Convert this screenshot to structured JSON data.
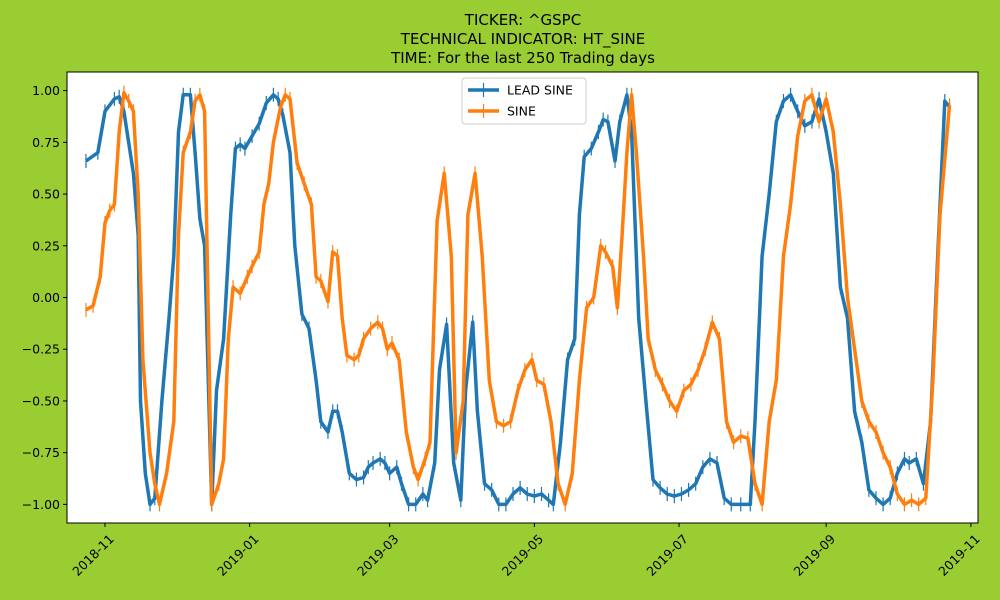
{
  "chart_data": {
    "type": "line",
    "title_lines": [
      "TICKER:  ^GSPC",
      "TECHNICAL INDICATOR:  HT_SINE",
      "TIME: For the last 250 Trading days"
    ],
    "xlabel": "",
    "ylabel": "",
    "x_ticks": [
      "2018-11",
      "2019-01",
      "2019-03",
      "2019-05",
      "2019-07",
      "2019-09",
      "2019-11"
    ],
    "x_range": [
      "2018-10-16",
      "2019-11-04"
    ],
    "y_ticks": [
      "1.00",
      "0.75",
      "0.50",
      "0.25",
      "0.00",
      "−0.25",
      "−0.50",
      "−0.75",
      "−1.00"
    ],
    "ylim": [
      -1.09,
      1.09
    ],
    "grid": false,
    "legend_position": "upper center",
    "series": [
      {
        "name": "LEAD SINE",
        "color": "#1f77b4",
        "points": [
          [
            "2018-10-24",
            0.66
          ],
          [
            "2018-10-29",
            0.7
          ],
          [
            "2018-11-01",
            0.9
          ],
          [
            "2018-11-05",
            0.96
          ],
          [
            "2018-11-07",
            0.97
          ],
          [
            "2018-11-09",
            0.9
          ],
          [
            "2018-11-13",
            0.6
          ],
          [
            "2018-11-15",
            0.3
          ],
          [
            "2018-11-16",
            -0.5
          ],
          [
            "2018-11-18",
            -0.85
          ],
          [
            "2018-11-20",
            -1.0
          ],
          [
            "2018-11-22",
            -0.97
          ],
          [
            "2018-11-25",
            -0.5
          ],
          [
            "2018-11-28",
            -0.1
          ],
          [
            "2018-11-30",
            0.2
          ],
          [
            "2018-12-02",
            0.8
          ],
          [
            "2018-12-04",
            0.98
          ],
          [
            "2018-12-07",
            0.98
          ],
          [
            "2018-12-09",
            0.7
          ],
          [
            "2018-12-11",
            0.38
          ],
          [
            "2018-12-13",
            0.25
          ],
          [
            "2018-12-16",
            -1.0
          ],
          [
            "2018-12-18",
            -0.45
          ],
          [
            "2018-12-21",
            -0.2
          ],
          [
            "2018-12-24",
            0.4
          ],
          [
            "2018-12-26",
            0.72
          ],
          [
            "2018-12-28",
            0.74
          ],
          [
            "2018-12-30",
            0.72
          ],
          [
            "2019-01-02",
            0.78
          ],
          [
            "2019-01-05",
            0.84
          ],
          [
            "2019-01-08",
            0.94
          ],
          [
            "2019-01-11",
            0.98
          ],
          [
            "2019-01-13",
            0.96
          ],
          [
            "2019-01-15",
            0.88
          ],
          [
            "2019-01-18",
            0.7
          ],
          [
            "2019-01-20",
            0.25
          ],
          [
            "2019-01-23",
            -0.08
          ],
          [
            "2019-01-26",
            -0.15
          ],
          [
            "2019-01-29",
            -0.4
          ],
          [
            "2019-01-31",
            -0.6
          ],
          [
            "2019-02-03",
            -0.65
          ],
          [
            "2019-02-05",
            -0.55
          ],
          [
            "2019-02-07",
            -0.55
          ],
          [
            "2019-02-09",
            -0.65
          ],
          [
            "2019-02-12",
            -0.85
          ],
          [
            "2019-02-15",
            -0.88
          ],
          [
            "2019-02-18",
            -0.87
          ],
          [
            "2019-02-20",
            -0.82
          ],
          [
            "2019-02-22",
            -0.8
          ],
          [
            "2019-02-25",
            -0.78
          ],
          [
            "2019-02-27",
            -0.8
          ],
          [
            "2019-03-01",
            -0.85
          ],
          [
            "2019-03-04",
            -0.82
          ],
          [
            "2019-03-06",
            -0.9
          ],
          [
            "2019-03-09",
            -1.0
          ],
          [
            "2019-03-12",
            -1.0
          ],
          [
            "2019-03-15",
            -0.95
          ],
          [
            "2019-03-17",
            -0.98
          ],
          [
            "2019-03-20",
            -0.8
          ],
          [
            "2019-03-22",
            -0.35
          ],
          [
            "2019-03-25",
            -0.13
          ],
          [
            "2019-03-28",
            -0.8
          ],
          [
            "2019-03-31",
            -0.98
          ],
          [
            "2019-04-02",
            -0.45
          ],
          [
            "2019-04-05",
            -0.12
          ],
          [
            "2019-04-07",
            -0.55
          ],
          [
            "2019-04-10",
            -0.9
          ],
          [
            "2019-04-13",
            -0.93
          ],
          [
            "2019-04-16",
            -1.0
          ],
          [
            "2019-04-19",
            -1.0
          ],
          [
            "2019-04-22",
            -0.95
          ],
          [
            "2019-04-25",
            -0.92
          ],
          [
            "2019-04-28",
            -0.95
          ],
          [
            "2019-05-01",
            -0.96
          ],
          [
            "2019-05-04",
            -0.95
          ],
          [
            "2019-05-07",
            -0.98
          ],
          [
            "2019-05-09",
            -1.0
          ],
          [
            "2019-05-12",
            -0.7
          ],
          [
            "2019-05-15",
            -0.3
          ],
          [
            "2019-05-18",
            -0.2
          ],
          [
            "2019-05-20",
            0.4
          ],
          [
            "2019-05-22",
            0.68
          ],
          [
            "2019-05-25",
            0.72
          ],
          [
            "2019-05-28",
            0.8
          ],
          [
            "2019-05-30",
            0.86
          ],
          [
            "2019-06-01",
            0.85
          ],
          [
            "2019-06-04",
            0.66
          ],
          [
            "2019-06-06",
            0.85
          ],
          [
            "2019-06-09",
            0.98
          ],
          [
            "2019-06-11",
            0.8
          ],
          [
            "2019-06-14",
            -0.1
          ],
          [
            "2019-06-17",
            -0.5
          ],
          [
            "2019-06-20",
            -0.88
          ],
          [
            "2019-06-23",
            -0.92
          ],
          [
            "2019-06-26",
            -0.95
          ],
          [
            "2019-06-29",
            -0.96
          ],
          [
            "2019-07-02",
            -0.95
          ],
          [
            "2019-07-05",
            -0.93
          ],
          [
            "2019-07-08",
            -0.9
          ],
          [
            "2019-07-11",
            -0.82
          ],
          [
            "2019-07-14",
            -0.78
          ],
          [
            "2019-07-17",
            -0.8
          ],
          [
            "2019-07-20",
            -0.97
          ],
          [
            "2019-07-23",
            -1.0
          ],
          [
            "2019-07-27",
            -1.0
          ],
          [
            "2019-07-31",
            -1.0
          ],
          [
            "2019-08-02",
            -0.6
          ],
          [
            "2019-08-05",
            0.2
          ],
          [
            "2019-08-08",
            0.5
          ],
          [
            "2019-08-11",
            0.85
          ],
          [
            "2019-08-14",
            0.95
          ],
          [
            "2019-08-17",
            0.98
          ],
          [
            "2019-08-20",
            0.9
          ],
          [
            "2019-08-23",
            0.83
          ],
          [
            "2019-08-26",
            0.85
          ],
          [
            "2019-08-29",
            0.96
          ],
          [
            "2019-09-01",
            0.8
          ],
          [
            "2019-09-04",
            0.6
          ],
          [
            "2019-09-07",
            0.05
          ],
          [
            "2019-09-10",
            -0.1
          ],
          [
            "2019-09-13",
            -0.55
          ],
          [
            "2019-09-16",
            -0.7
          ],
          [
            "2019-09-19",
            -0.93
          ],
          [
            "2019-09-22",
            -0.97
          ],
          [
            "2019-09-25",
            -1.0
          ],
          [
            "2019-09-28",
            -0.97
          ],
          [
            "2019-10-01",
            -0.85
          ],
          [
            "2019-10-04",
            -0.78
          ],
          [
            "2019-10-06",
            -0.8
          ],
          [
            "2019-10-09",
            -0.78
          ],
          [
            "2019-10-12",
            -0.9
          ],
          [
            "2019-10-15",
            -0.6
          ],
          [
            "2019-10-18",
            0.2
          ],
          [
            "2019-10-21",
            0.95
          ],
          [
            "2019-10-23",
            0.92
          ]
        ]
      },
      {
        "name": "SINE",
        "color": "#ff7f0e",
        "points": [
          [
            "2018-10-24",
            -0.06
          ],
          [
            "2018-10-27",
            -0.04
          ],
          [
            "2018-10-30",
            0.1
          ],
          [
            "2018-11-01",
            0.36
          ],
          [
            "2018-11-03",
            0.42
          ],
          [
            "2018-11-05",
            0.45
          ],
          [
            "2018-11-07",
            0.8
          ],
          [
            "2018-11-09",
            0.99
          ],
          [
            "2018-11-11",
            0.95
          ],
          [
            "2018-11-13",
            0.9
          ],
          [
            "2018-11-15",
            0.5
          ],
          [
            "2018-11-17",
            -0.3
          ],
          [
            "2018-11-20",
            -0.75
          ],
          [
            "2018-11-22",
            -0.9
          ],
          [
            "2018-11-24",
            -1.0
          ],
          [
            "2018-11-27",
            -0.85
          ],
          [
            "2018-11-30",
            -0.6
          ],
          [
            "2018-12-02",
            0.3
          ],
          [
            "2018-12-04",
            0.7
          ],
          [
            "2018-12-07",
            0.8
          ],
          [
            "2018-12-09",
            0.95
          ],
          [
            "2018-12-11",
            0.98
          ],
          [
            "2018-12-13",
            0.9
          ],
          [
            "2018-12-16",
            -1.0
          ],
          [
            "2018-12-19",
            -0.9
          ],
          [
            "2018-12-21",
            -0.78
          ],
          [
            "2018-12-23",
            -0.2
          ],
          [
            "2018-12-25",
            0.05
          ],
          [
            "2018-12-28",
            0.02
          ],
          [
            "2018-12-31",
            0.1
          ],
          [
            "2019-01-02",
            0.15
          ],
          [
            "2019-01-05",
            0.22
          ],
          [
            "2019-01-07",
            0.45
          ],
          [
            "2019-01-09",
            0.55
          ],
          [
            "2019-01-11",
            0.75
          ],
          [
            "2019-01-14",
            0.92
          ],
          [
            "2019-01-16",
            0.98
          ],
          [
            "2019-01-18",
            0.96
          ],
          [
            "2019-01-21",
            0.65
          ],
          [
            "2019-01-24",
            0.55
          ],
          [
            "2019-01-27",
            0.45
          ],
          [
            "2019-01-29",
            0.1
          ],
          [
            "2019-01-31",
            0.08
          ],
          [
            "2019-02-03",
            -0.02
          ],
          [
            "2019-02-05",
            0.22
          ],
          [
            "2019-02-07",
            0.2
          ],
          [
            "2019-02-09",
            -0.1
          ],
          [
            "2019-02-11",
            -0.28
          ],
          [
            "2019-02-14",
            -0.3
          ],
          [
            "2019-02-16",
            -0.28
          ],
          [
            "2019-02-18",
            -0.2
          ],
          [
            "2019-02-21",
            -0.15
          ],
          [
            "2019-02-24",
            -0.12
          ],
          [
            "2019-02-26",
            -0.15
          ],
          [
            "2019-02-28",
            -0.25
          ],
          [
            "2019-03-02",
            -0.22
          ],
          [
            "2019-03-05",
            -0.3
          ],
          [
            "2019-03-08",
            -0.65
          ],
          [
            "2019-03-11",
            -0.82
          ],
          [
            "2019-03-13",
            -0.88
          ],
          [
            "2019-03-16",
            -0.78
          ],
          [
            "2019-03-18",
            -0.7
          ],
          [
            "2019-03-21",
            0.37
          ],
          [
            "2019-03-24",
            0.6
          ],
          [
            "2019-03-27",
            0.2
          ],
          [
            "2019-03-29",
            -0.75
          ],
          [
            "2019-04-01",
            -0.5
          ],
          [
            "2019-04-03",
            0.4
          ],
          [
            "2019-04-06",
            0.6
          ],
          [
            "2019-04-09",
            0.2
          ],
          [
            "2019-04-12",
            -0.4
          ],
          [
            "2019-04-15",
            -0.6
          ],
          [
            "2019-04-18",
            -0.62
          ],
          [
            "2019-04-21",
            -0.6
          ],
          [
            "2019-04-24",
            -0.45
          ],
          [
            "2019-04-27",
            -0.35
          ],
          [
            "2019-04-30",
            -0.3
          ],
          [
            "2019-05-02",
            -0.4
          ],
          [
            "2019-05-05",
            -0.42
          ],
          [
            "2019-05-08",
            -0.6
          ],
          [
            "2019-05-11",
            -0.9
          ],
          [
            "2019-05-14",
            -1.0
          ],
          [
            "2019-05-17",
            -0.85
          ],
          [
            "2019-05-20",
            -0.4
          ],
          [
            "2019-05-23",
            -0.05
          ],
          [
            "2019-05-26",
            0.0
          ],
          [
            "2019-05-29",
            0.25
          ],
          [
            "2019-05-31",
            0.22
          ],
          [
            "2019-06-03",
            0.15
          ],
          [
            "2019-06-05",
            -0.05
          ],
          [
            "2019-06-07",
            0.3
          ],
          [
            "2019-06-09",
            0.7
          ],
          [
            "2019-06-11",
            0.98
          ],
          [
            "2019-06-13",
            0.7
          ],
          [
            "2019-06-16",
            0.2
          ],
          [
            "2019-06-18",
            -0.2
          ],
          [
            "2019-06-21",
            -0.35
          ],
          [
            "2019-06-24",
            -0.42
          ],
          [
            "2019-06-27",
            -0.5
          ],
          [
            "2019-06-30",
            -0.55
          ],
          [
            "2019-07-03",
            -0.45
          ],
          [
            "2019-07-06",
            -0.42
          ],
          [
            "2019-07-09",
            -0.35
          ],
          [
            "2019-07-12",
            -0.25
          ],
          [
            "2019-07-15",
            -0.12
          ],
          [
            "2019-07-18",
            -0.2
          ],
          [
            "2019-07-21",
            -0.6
          ],
          [
            "2019-07-24",
            -0.7
          ],
          [
            "2019-07-27",
            -0.67
          ],
          [
            "2019-07-30",
            -0.68
          ],
          [
            "2019-08-02",
            -0.9
          ],
          [
            "2019-08-05",
            -1.0
          ],
          [
            "2019-08-08",
            -0.6
          ],
          [
            "2019-08-11",
            -0.4
          ],
          [
            "2019-08-14",
            0.2
          ],
          [
            "2019-08-17",
            0.45
          ],
          [
            "2019-08-20",
            0.78
          ],
          [
            "2019-08-23",
            0.95
          ],
          [
            "2019-08-26",
            0.98
          ],
          [
            "2019-08-29",
            0.85
          ],
          [
            "2019-09-01",
            0.96
          ],
          [
            "2019-09-04",
            0.8
          ],
          [
            "2019-09-07",
            0.45
          ],
          [
            "2019-09-10",
            0.0
          ],
          [
            "2019-09-13",
            -0.25
          ],
          [
            "2019-09-16",
            -0.5
          ],
          [
            "2019-09-19",
            -0.6
          ],
          [
            "2019-09-22",
            -0.65
          ],
          [
            "2019-09-25",
            -0.75
          ],
          [
            "2019-09-28",
            -0.82
          ],
          [
            "2019-10-01",
            -0.95
          ],
          [
            "2019-10-04",
            -1.0
          ],
          [
            "2019-10-07",
            -0.98
          ],
          [
            "2019-10-10",
            -1.0
          ],
          [
            "2019-10-13",
            -0.97
          ],
          [
            "2019-10-16",
            -0.4
          ],
          [
            "2019-10-19",
            0.4
          ],
          [
            "2019-10-23",
            0.93
          ]
        ]
      }
    ]
  }
}
